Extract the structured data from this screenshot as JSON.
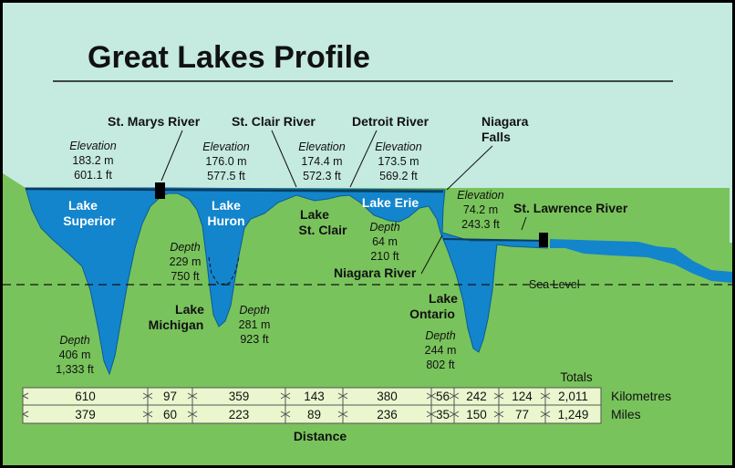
{
  "title": "Great Lakes Profile",
  "colors": {
    "sky": "#c5eadf",
    "land": "#79c35c",
    "water": "#1385cc",
    "table": "#eaf7ce"
  },
  "rivers": {
    "st_marys": "St. Marys River",
    "st_clair": "St. Clair River",
    "detroit": "Detroit River",
    "niagara_falls_1": "Niagara",
    "niagara_falls_2": "Falls",
    "st_lawrence": "St. Lawrence River",
    "niagara_river": "Niagara River"
  },
  "sea_level": "Sea Level",
  "lakes": {
    "superior": [
      "Lake",
      "Superior"
    ],
    "huron": [
      "Lake",
      "Huron"
    ],
    "michigan": [
      "Lake",
      "Michigan"
    ],
    "st_clair": [
      "Lake",
      "St. Clair"
    ],
    "erie": "Lake Erie",
    "ontario": [
      "Lake",
      "Ontario"
    ]
  },
  "elevations": [
    [
      "Elevation",
      "183.2 m",
      "601.1 ft"
    ],
    [
      "Elevation",
      "176.0 m",
      "577.5 ft"
    ],
    [
      "Elevation",
      "174.4 m",
      "572.3 ft"
    ],
    [
      "Elevation",
      "173.5 m",
      "569.2 ft"
    ],
    [
      "Elevation",
      "74.2 m",
      "243.3 ft"
    ]
  ],
  "depths": {
    "superior": [
      "Depth",
      "406 m",
      "1,333 ft"
    ],
    "huron": [
      "Depth",
      "229 m",
      "750 ft"
    ],
    "michigan": [
      "Depth",
      "281 m",
      "923 ft"
    ],
    "erie": [
      "Depth",
      "64 m",
      "210 ft"
    ],
    "ontario": [
      "Depth",
      "244 m",
      "802 ft"
    ]
  },
  "distance_table": {
    "totals_label": "Totals",
    "kilometres": [
      "610",
      "97",
      "359",
      "143",
      "380",
      "56",
      "242",
      "124",
      "2,011"
    ],
    "miles": [
      "379",
      "60",
      "223",
      "89",
      "236",
      "35",
      "150",
      "77",
      "1,249"
    ],
    "row_labels": [
      "Kilometres",
      "Miles"
    ],
    "caption": "Distance"
  }
}
